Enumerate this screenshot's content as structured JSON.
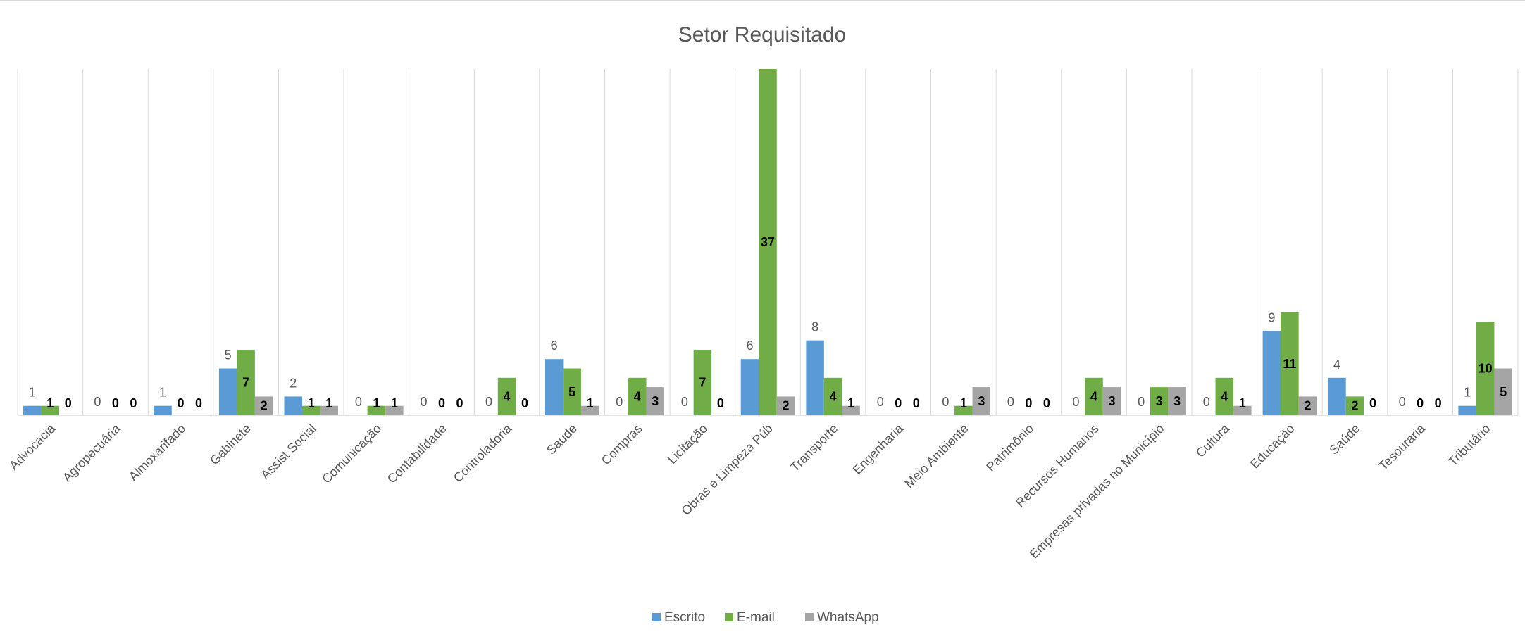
{
  "chart_data": {
    "type": "bar",
    "title": "Setor Requisitado",
    "xlabel": "",
    "ylabel": "",
    "ylim": [
      0,
      37
    ],
    "grid": "vertical category separators",
    "legend_position": "bottom",
    "categories": [
      "Advocacia",
      "Agropecuária",
      "Almoxarifado",
      "Gabinete",
      "Assist Social",
      "Comunicação",
      "Contabilidade",
      "Controladoria",
      "Saude",
      "Compras",
      "Licitação",
      "Obras e Limpeza Púb",
      "Transporte",
      "Engenharia",
      "Meio Ambiente",
      "Patrimônio",
      "Recursos Humanos",
      "Empresas privadas no Município",
      "Cultura",
      "Educação",
      "Saúde",
      "Tesouraria",
      "Tributário"
    ],
    "series": [
      {
        "name": "Escrito",
        "color": "#5b9bd5",
        "values": [
          1,
          0,
          1,
          5,
          2,
          0,
          0,
          0,
          6,
          0,
          0,
          6,
          8,
          0,
          0,
          0,
          0,
          0,
          0,
          9,
          4,
          0,
          1
        ]
      },
      {
        "name": "E-mail",
        "color": "#70ad47",
        "values": [
          1,
          0,
          0,
          7,
          1,
          1,
          0,
          4,
          5,
          4,
          7,
          37,
          4,
          0,
          1,
          0,
          4,
          3,
          4,
          11,
          2,
          0,
          10
        ]
      },
      {
        "name": "WhatsApp",
        "color": "#a5a5a5",
        "values": [
          0,
          0,
          0,
          2,
          1,
          1,
          0,
          0,
          1,
          3,
          0,
          2,
          1,
          0,
          3,
          0,
          3,
          3,
          1,
          2,
          0,
          0,
          5
        ]
      }
    ]
  }
}
